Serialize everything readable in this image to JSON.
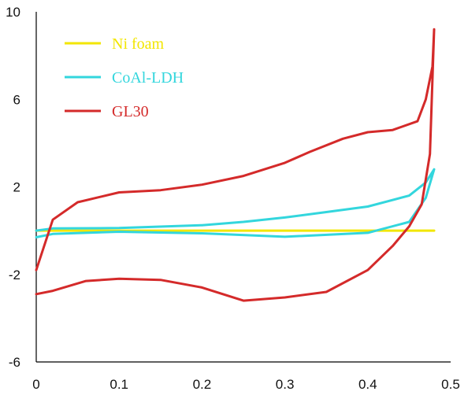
{
  "chart_data": {
    "type": "line",
    "title": "",
    "xlabel": "",
    "ylabel": "",
    "xlim": [
      0,
      0.5
    ],
    "ylim": [
      -6,
      10
    ],
    "x_ticks": [
      0,
      0.1,
      0.2,
      0.3,
      0.4,
      0.5
    ],
    "y_ticks": [
      10,
      6,
      2,
      -2,
      -6
    ],
    "grid": false,
    "legend_position": "top-left",
    "series": [
      {
        "name": "Ni foam",
        "color": "#f2e600",
        "x": [
          0.0,
          0.1,
          0.2,
          0.3,
          0.4,
          0.48
        ],
        "y": [
          0.0,
          0.0,
          0.0,
          0.0,
          0.0,
          0.0
        ]
      },
      {
        "name": "CoAl-LDH",
        "color": "#33d6dd",
        "x": [
          0.0,
          0.02,
          0.1,
          0.2,
          0.3,
          0.4,
          0.45,
          0.47,
          0.48,
          0.47,
          0.45,
          0.4,
          0.35,
          0.3,
          0.25,
          0.2,
          0.1,
          0.02,
          0.0
        ],
        "y": [
          -0.3,
          -0.15,
          -0.05,
          -0.12,
          -0.28,
          -0.1,
          0.4,
          1.5,
          2.8,
          2.2,
          1.6,
          1.1,
          0.85,
          0.6,
          0.4,
          0.25,
          0.12,
          0.1,
          0.0
        ]
      },
      {
        "name": "GL30",
        "color": "#d42a2a",
        "x": [
          0.0,
          0.02,
          0.06,
          0.1,
          0.15,
          0.2,
          0.25,
          0.3,
          0.35,
          0.4,
          0.43,
          0.45,
          0.465,
          0.475,
          0.48,
          0.478,
          0.47,
          0.46,
          0.43,
          0.4,
          0.37,
          0.33,
          0.3,
          0.25,
          0.2,
          0.15,
          0.1,
          0.05,
          0.02,
          0.0
        ],
        "y": [
          -2.9,
          -2.75,
          -2.3,
          -2.2,
          -2.25,
          -2.6,
          -3.2,
          -3.05,
          -2.8,
          -1.8,
          -0.7,
          0.2,
          1.2,
          3.5,
          9.2,
          7.5,
          6.0,
          5.0,
          4.6,
          4.5,
          4.2,
          3.6,
          3.1,
          2.5,
          2.1,
          1.85,
          1.75,
          1.3,
          0.5,
          -1.8
        ]
      }
    ]
  }
}
